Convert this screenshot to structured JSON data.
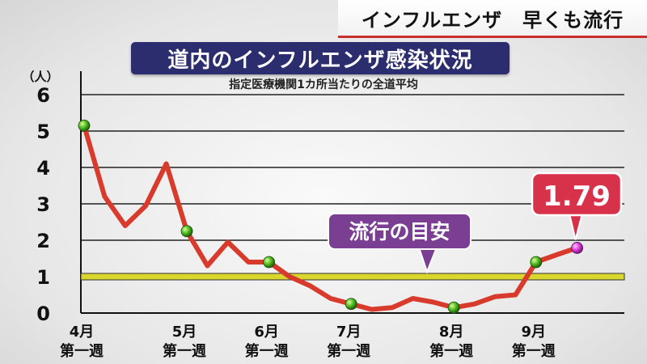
{
  "header": {
    "corner_title": "インフルエンザ　早くも流行",
    "title": "道内のインフルエンザ感染状況",
    "subtitle": "指定医療機関1カ所当たりの全道平均"
  },
  "chart_data": {
    "type": "line",
    "title": "道内のインフルエンザ感染状況",
    "subtitle": "指定医療機関1カ所当たりの全道平均",
    "y_unit": "（人）",
    "ylim": [
      0,
      6
    ],
    "yticks": [
      "0",
      "1",
      "2",
      "3",
      "4",
      "5",
      "6"
    ],
    "grid": true,
    "x_labels": [
      {
        "month": "4月",
        "week": "第一週",
        "index": 0
      },
      {
        "month": "5月",
        "week": "第一週",
        "index": 5
      },
      {
        "month": "6月",
        "week": "第一週",
        "index": 9
      },
      {
        "month": "7月",
        "week": "第一週",
        "index": 13
      },
      {
        "month": "8月",
        "week": "第一週",
        "index": 18
      },
      {
        "month": "9月",
        "week": "第一週",
        "index": 22
      }
    ],
    "series": [
      {
        "values": [
          5.15,
          3.2,
          2.4,
          2.95,
          4.1,
          2.25,
          1.3,
          1.95,
          1.4,
          1.4,
          1.0,
          0.75,
          0.4,
          0.25,
          0.1,
          0.15,
          0.4,
          0.3,
          0.15,
          0.25,
          0.45,
          0.5,
          1.4,
          1.6,
          1.79
        ],
        "color": "#d83a2c"
      }
    ],
    "marked_indices": [
      0,
      5,
      9,
      13,
      18,
      22
    ],
    "highlight": {
      "index": 24,
      "label": "1.79"
    },
    "threshold": {
      "value": 1,
      "label": "流行の目安",
      "color": "#d9d62e"
    }
  }
}
